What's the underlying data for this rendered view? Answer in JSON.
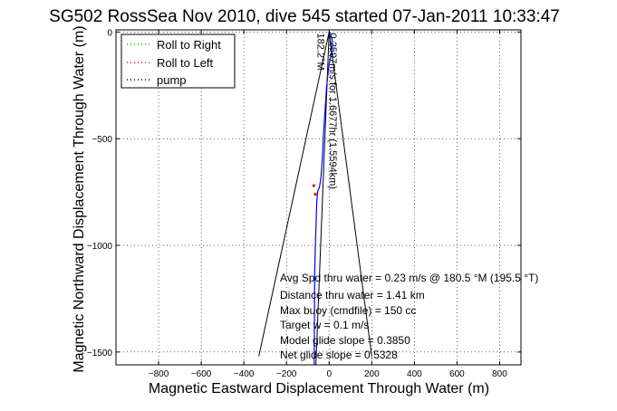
{
  "chart_data": {
    "type": "line",
    "title": "SG502 RossSea Nov 2010, dive 545 started 07-Jan-2011 10:33:47",
    "xlabel": "Magnetic Eastward Displacement Through Water (m)",
    "ylabel": "Magnetic Northward Displacement Through Water (m)",
    "xlim": [
      -1000,
      900
    ],
    "ylim": [
      -1560,
      10
    ],
    "xticks": [
      -800,
      -600,
      -400,
      -200,
      0,
      200,
      400,
      600,
      800
    ],
    "yticks": [
      0,
      -500,
      -1000,
      -1500
    ],
    "xtick_labels": [
      "−800",
      "−600",
      "−400",
      "−200",
      "0",
      "200",
      "400",
      "600",
      "800"
    ],
    "ytick_labels": [
      "0",
      "−500",
      "−1000",
      "−1500"
    ],
    "grid": true,
    "legend": {
      "placement": "top-left",
      "entries": [
        {
          "name": "Roll to Right",
          "color": "#00c000"
        },
        {
          "name": "Roll to Left",
          "color": "#ff0000"
        },
        {
          "name": "pump",
          "color": "#000000"
        }
      ]
    },
    "series": [
      {
        "color": "#0000ff",
        "x": [
          0,
          2,
          6,
          12,
          16,
          14,
          8,
          0,
          -6,
          -12,
          -16,
          -20,
          -24,
          -28,
          -30,
          -34,
          -38,
          -44,
          -48,
          -52,
          -55,
          -58,
          -60,
          -62,
          -64,
          -66,
          -68,
          -70
        ],
        "y": [
          -5,
          -2,
          -10,
          -25,
          -50,
          -80,
          -110,
          -150,
          -200,
          -260,
          -320,
          -380,
          -440,
          -500,
          -560,
          -620,
          -680,
          -720,
          -735,
          -740,
          -760,
          -800,
          -860,
          -920,
          -980,
          -1060,
          -1140,
          -1560
        ]
      }
    ],
    "markers": [
      {
        "x": -72,
        "y": -720
      },
      {
        "x": -65,
        "y": -760
      }
    ],
    "envelope_lines": [
      {
        "x": [
          0,
          -330
        ],
        "y": [
          0,
          -1520
        ]
      },
      {
        "x": [
          0,
          200
        ],
        "y": [
          0,
          -1520
        ]
      },
      {
        "x": [
          0,
          -62
        ],
        "y": [
          0,
          -1560
        ]
      }
    ],
    "annotations": [
      {
        "text": "182.2°M",
        "x": -55,
        "y": -5,
        "rotation": 90
      },
      {
        "text": "0.2597m/s for 1.6677hr (1.5594km)",
        "x": 3,
        "y": -5,
        "rotation": 90
      }
    ],
    "info_lines": [
      "Avg Spd thru water =  0.23 m/s @ 180.5   °M (195.5 °T)",
      "Distance thru water =  1.41 km",
      "Max buoy (cmdfile) = 150 cc",
      "Target w = 0.1 m/s",
      "Model glide slope = 0.3850",
      "Net glide slope = 0.5328"
    ]
  }
}
